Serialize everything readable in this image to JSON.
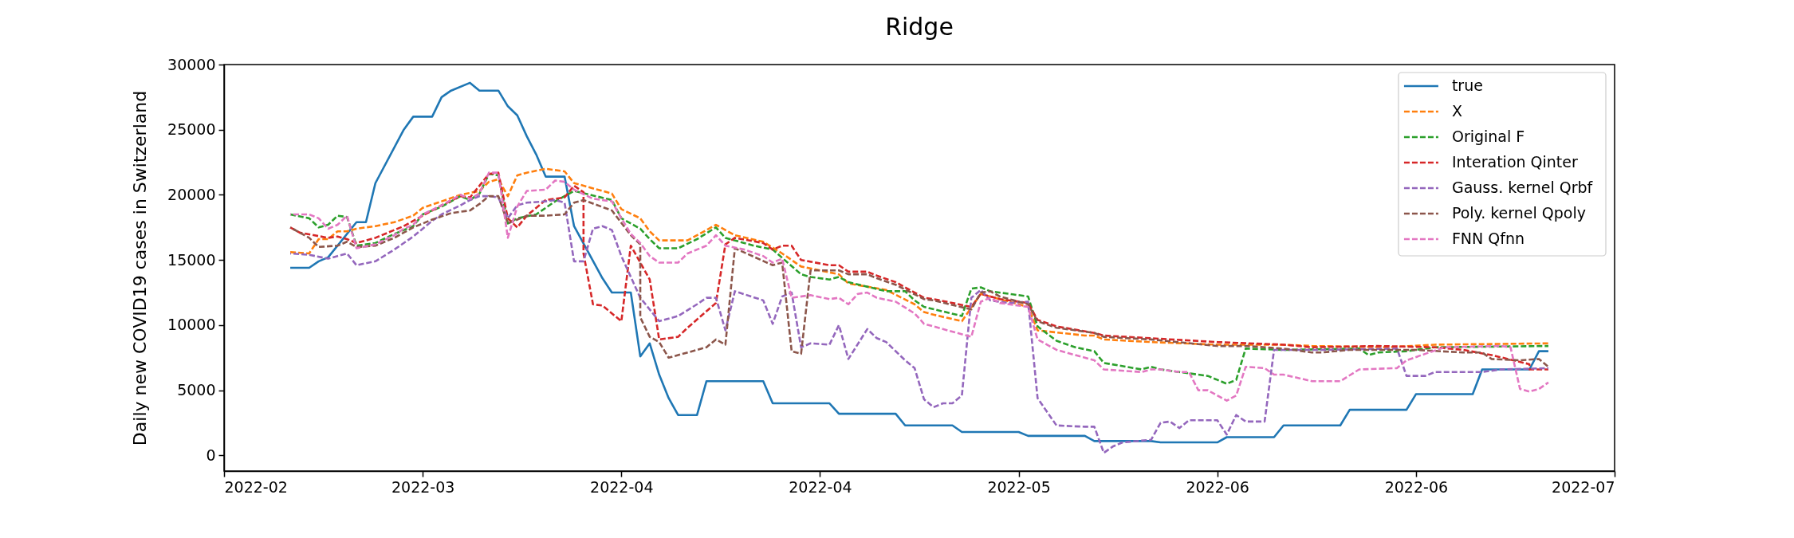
{
  "chart_data": {
    "type": "line",
    "title": "Ridge",
    "ylabel": "Daily new COVID19 cases in Switzerland",
    "xlim": [
      "2022-02-22",
      "2022-07-19"
    ],
    "ylim": [
      -1200,
      30000
    ],
    "xticks": [
      {
        "value": "2022-02-22",
        "label": "2022-02"
      },
      {
        "value": "2022-03-15",
        "label": "2022-03"
      },
      {
        "value": "2022-04-05",
        "label": "2022-04"
      },
      {
        "value": "2022-04-26",
        "label": "2022-04"
      },
      {
        "value": "2022-05-17",
        "label": "2022-05"
      },
      {
        "value": "2022-06-07",
        "label": "2022-06"
      },
      {
        "value": "2022-06-28",
        "label": "2022-06"
      },
      {
        "value": "2022-07-19",
        "label": "2022-07"
      }
    ],
    "yticks": [
      0,
      5000,
      10000,
      15000,
      20000,
      25000,
      30000
    ],
    "grid": false,
    "legend": "top right",
    "series": [
      {
        "name": "true",
        "color": "#1f77b4",
        "line_style": "solid",
        "x": [
          "2022-03-01",
          "2022-03-03",
          "2022-03-04",
          "2022-03-05",
          "2022-03-08",
          "2022-03-09",
          "2022-03-10",
          "2022-03-13",
          "2022-03-14",
          "2022-03-16",
          "2022-03-17",
          "2022-03-18",
          "2022-03-20",
          "2022-03-21",
          "2022-03-23",
          "2022-03-24",
          "2022-03-25",
          "2022-03-26",
          "2022-03-27",
          "2022-03-28",
          "2022-03-30",
          "2022-03-31",
          "2022-04-03",
          "2022-04-04",
          "2022-04-06",
          "2022-04-07",
          "2022-04-08",
          "2022-04-09",
          "2022-04-10",
          "2022-04-11",
          "2022-04-13",
          "2022-04-14",
          "2022-04-20",
          "2022-04-21",
          "2022-04-27",
          "2022-04-28",
          "2022-05-04",
          "2022-05-05",
          "2022-05-10",
          "2022-05-11",
          "2022-05-17",
          "2022-05-18",
          "2022-05-24",
          "2022-05-25",
          "2022-05-31",
          "2022-06-01",
          "2022-06-07",
          "2022-06-08",
          "2022-06-13",
          "2022-06-14",
          "2022-06-20",
          "2022-06-21",
          "2022-06-27",
          "2022-06-28",
          "2022-07-04",
          "2022-07-05",
          "2022-07-10",
          "2022-07-11",
          "2022-07-12"
        ],
        "values": [
          14400,
          14400,
          14900,
          15200,
          17900,
          17900,
          20900,
          25000,
          26000,
          26000,
          27500,
          28000,
          28600,
          28000,
          28000,
          26800,
          26100,
          24500,
          23100,
          21400,
          21400,
          17600,
          13600,
          12500,
          12500,
          7600,
          8600,
          6200,
          4400,
          3100,
          3100,
          5700,
          5700,
          4000,
          4000,
          3200,
          3200,
          2300,
          2300,
          1800,
          1800,
          1500,
          1500,
          1100,
          1100,
          1000,
          1000,
          1400,
          1400,
          2300,
          2300,
          3500,
          3500,
          4700,
          4700,
          6600,
          6600,
          8000,
          8000
        ]
      },
      {
        "name": "X",
        "color": "#ff7f0e",
        "line_style": "dashed",
        "x": [
          "2022-03-01",
          "2022-03-03",
          "2022-03-04",
          "2022-03-05",
          "2022-03-06",
          "2022-03-07",
          "2022-03-08",
          "2022-03-10",
          "2022-03-12",
          "2022-03-14",
          "2022-03-15",
          "2022-03-17",
          "2022-03-19",
          "2022-03-21",
          "2022-03-22",
          "2022-03-23",
          "2022-03-24",
          "2022-03-25",
          "2022-03-26",
          "2022-03-28",
          "2022-03-30",
          "2022-03-31",
          "2022-04-04",
          "2022-04-05",
          "2022-04-07",
          "2022-04-08",
          "2022-04-09",
          "2022-04-12",
          "2022-04-15",
          "2022-04-17",
          "2022-04-20",
          "2022-04-22",
          "2022-04-24",
          "2022-04-28",
          "2022-04-29",
          "2022-05-03",
          "2022-05-06",
          "2022-05-07",
          "2022-05-08",
          "2022-05-11",
          "2022-05-13",
          "2022-05-18",
          "2022-05-19",
          "2022-05-24",
          "2022-05-25",
          "2022-05-26",
          "2022-05-31",
          "2022-06-07",
          "2022-06-14",
          "2022-06-17",
          "2022-06-25",
          "2022-06-30",
          "2022-07-12"
        ],
        "values": [
          15600,
          15500,
          16600,
          16600,
          17200,
          17200,
          17400,
          17600,
          17900,
          18400,
          19000,
          19500,
          20000,
          20300,
          21000,
          21200,
          19900,
          21500,
          21700,
          22000,
          21800,
          20900,
          20100,
          18900,
          18200,
          17200,
          16500,
          16500,
          17700,
          16900,
          16400,
          15500,
          14500,
          13900,
          13200,
          12700,
          11600,
          11000,
          10800,
          10300,
          12400,
          11400,
          9600,
          9200,
          9200,
          8900,
          8700,
          8500,
          8500,
          8400,
          8300,
          8500,
          8600
        ]
      },
      {
        "name": "Original F",
        "color": "#2ca02c",
        "line_style": "dashed",
        "x": [
          "2022-03-01",
          "2022-03-03",
          "2022-03-04",
          "2022-03-05",
          "2022-03-06",
          "2022-03-07",
          "2022-03-08",
          "2022-03-10",
          "2022-03-12",
          "2022-03-14",
          "2022-03-15",
          "2022-03-17",
          "2022-03-19",
          "2022-03-20",
          "2022-03-21",
          "2022-03-22",
          "2022-03-23",
          "2022-03-24",
          "2022-03-25",
          "2022-03-27",
          "2022-03-29",
          "2022-03-31",
          "2022-04-04",
          "2022-04-05",
          "2022-04-07",
          "2022-04-08",
          "2022-04-09",
          "2022-04-11",
          "2022-04-13",
          "2022-04-15",
          "2022-04-16",
          "2022-04-19",
          "2022-04-21",
          "2022-04-24",
          "2022-04-25",
          "2022-04-27",
          "2022-04-28",
          "2022-04-29",
          "2022-05-03",
          "2022-05-05",
          "2022-05-06",
          "2022-05-07",
          "2022-05-11",
          "2022-05-12",
          "2022-05-13",
          "2022-05-14",
          "2022-05-18",
          "2022-05-19",
          "2022-05-21",
          "2022-05-23",
          "2022-05-25",
          "2022-05-26",
          "2022-05-30",
          "2022-05-31",
          "2022-06-01",
          "2022-06-03",
          "2022-06-06",
          "2022-06-08",
          "2022-06-09",
          "2022-06-10",
          "2022-06-14",
          "2022-06-22",
          "2022-06-23",
          "2022-06-24",
          "2022-06-27",
          "2022-06-30",
          "2022-07-12"
        ],
        "values": [
          18500,
          18200,
          17500,
          17700,
          18400,
          18300,
          16100,
          16300,
          17000,
          17600,
          18500,
          19100,
          19900,
          19600,
          20100,
          21600,
          21500,
          17800,
          18200,
          18500,
          19500,
          20300,
          19600,
          18200,
          17400,
          16600,
          15900,
          15900,
          16600,
          17500,
          16700,
          16100,
          15800,
          13900,
          13700,
          13500,
          13700,
          13300,
          12600,
          12600,
          11900,
          11400,
          10700,
          12800,
          12900,
          12600,
          12200,
          9900,
          8800,
          8300,
          8000,
          7100,
          6600,
          6800,
          6600,
          6400,
          6100,
          5500,
          5800,
          8200,
          8100,
          8200,
          7700,
          7900,
          8000,
          8300,
          8400
        ]
      },
      {
        "name": "Interation Qinter",
        "color": "#d62728",
        "line_style": "dashed",
        "x": [
          "2022-03-01",
          "2022-03-02",
          "2022-03-05",
          "2022-03-06",
          "2022-03-07",
          "2022-03-08",
          "2022-03-10",
          "2022-03-13",
          "2022-03-15",
          "2022-03-17",
          "2022-03-19",
          "2022-03-20",
          "2022-03-22",
          "2022-03-23",
          "2022-03-24",
          "2022-03-25",
          "2022-03-26",
          "2022-03-28",
          "2022-03-30",
          "2022-03-31",
          "2022-04-01",
          "2022-04-01",
          "2022-04-02",
          "2022-04-03",
          "2022-04-05",
          "2022-04-06",
          "2022-04-08",
          "2022-04-09",
          "2022-04-11",
          "2022-04-12",
          "2022-04-15",
          "2022-04-16",
          "2022-04-17",
          "2022-04-20",
          "2022-04-21",
          "2022-04-22",
          "2022-04-23",
          "2022-04-24",
          "2022-04-27",
          "2022-04-28",
          "2022-04-29",
          "2022-05-01",
          "2022-05-02",
          "2022-05-04",
          "2022-05-07",
          "2022-05-08",
          "2022-05-12",
          "2022-05-13",
          "2022-05-15",
          "2022-05-18",
          "2022-05-19",
          "2022-05-21",
          "2022-05-25",
          "2022-05-26",
          "2022-06-07",
          "2022-06-14",
          "2022-06-17",
          "2022-06-24",
          "2022-06-30",
          "2022-07-03",
          "2022-07-06",
          "2022-07-10",
          "2022-07-10",
          "2022-07-12"
        ],
        "values": [
          17500,
          17100,
          16700,
          16800,
          16600,
          16300,
          16700,
          17600,
          18400,
          19200,
          19900,
          19800,
          21600,
          21700,
          18200,
          17500,
          18400,
          19600,
          19800,
          20700,
          20200,
          15500,
          11600,
          11500,
          10300,
          16100,
          13500,
          8900,
          9100,
          9800,
          11700,
          16200,
          16700,
          16300,
          15800,
          16100,
          16100,
          15000,
          14600,
          14600,
          14100,
          14100,
          13800,
          13300,
          12100,
          12000,
          11400,
          12400,
          12000,
          11700,
          10400,
          9900,
          9400,
          9200,
          8700,
          8500,
          8300,
          8400,
          8300,
          8100,
          7700,
          7000,
          6600,
          6600
        ]
      },
      {
        "name": "Gauss. kernel Qrbf",
        "color": "#9467bd",
        "line_style": "dashed",
        "x": [
          "2022-03-01",
          "2022-03-03",
          "2022-03-05",
          "2022-03-06",
          "2022-03-07",
          "2022-03-08",
          "2022-03-10",
          "2022-03-12",
          "2022-03-14",
          "2022-03-16",
          "2022-03-17",
          "2022-03-19",
          "2022-03-20",
          "2022-03-21",
          "2022-03-22",
          "2022-03-23",
          "2022-03-24",
          "2022-03-25",
          "2022-03-26",
          "2022-03-28",
          "2022-03-29",
          "2022-03-30",
          "2022-03-31",
          "2022-04-01",
          "2022-04-02",
          "2022-04-03",
          "2022-04-04",
          "2022-04-05",
          "2022-04-07",
          "2022-04-09",
          "2022-04-11",
          "2022-04-13",
          "2022-04-14",
          "2022-04-15",
          "2022-04-16",
          "2022-04-17",
          "2022-04-20",
          "2022-04-21",
          "2022-04-22",
          "2022-04-23",
          "2022-04-24",
          "2022-04-25",
          "2022-04-27",
          "2022-04-28",
          "2022-04-29",
          "2022-05-01",
          "2022-05-02",
          "2022-05-03",
          "2022-05-05",
          "2022-05-06",
          "2022-05-07",
          "2022-05-08",
          "2022-05-09",
          "2022-05-10",
          "2022-05-11",
          "2022-05-12",
          "2022-05-13",
          "2022-05-14",
          "2022-05-16",
          "2022-05-18",
          "2022-05-19",
          "2022-05-21",
          "2022-05-24",
          "2022-05-25",
          "2022-05-26",
          "2022-05-27",
          "2022-05-28",
          "2022-05-31",
          "2022-06-01",
          "2022-06-02",
          "2022-06-03",
          "2022-06-04",
          "2022-06-07",
          "2022-06-08",
          "2022-06-09",
          "2022-06-10",
          "2022-06-12",
          "2022-06-13",
          "2022-06-18",
          "2022-06-26",
          "2022-06-27",
          "2022-06-29",
          "2022-06-30",
          "2022-07-05",
          "2022-07-07",
          "2022-07-12"
        ],
        "values": [
          15500,
          15400,
          15100,
          15300,
          15500,
          14600,
          14900,
          15800,
          16800,
          18000,
          18500,
          19200,
          19600,
          19900,
          19900,
          19800,
          18200,
          19200,
          19400,
          19500,
          19600,
          19400,
          14900,
          14900,
          17400,
          17600,
          17300,
          15300,
          12100,
          10300,
          10700,
          11600,
          12100,
          12100,
          9600,
          12600,
          11900,
          10100,
          12200,
          12500,
          8300,
          8600,
          8500,
          10000,
          7400,
          9700,
          9000,
          8700,
          7300,
          6700,
          4300,
          3700,
          4000,
          4000,
          4600,
          12100,
          12700,
          11900,
          11700,
          11800,
          4400,
          2300,
          2200,
          2200,
          200,
          700,
          1000,
          1200,
          2500,
          2600,
          2100,
          2700,
          2700,
          1600,
          3100,
          2600,
          2600,
          8100,
          8100,
          8200,
          6100,
          6100,
          6400,
          6400,
          6600,
          6700
        ]
      },
      {
        "name": "Poly. kernel Qpoly",
        "color": "#8c564b",
        "line_style": "dashed",
        "x": [
          "2022-03-01",
          "2022-03-03",
          "2022-03-04",
          "2022-03-06",
          "2022-03-07",
          "2022-03-08",
          "2022-03-10",
          "2022-03-12",
          "2022-03-14",
          "2022-03-16",
          "2022-03-18",
          "2022-03-20",
          "2022-03-21",
          "2022-03-22",
          "2022-03-23",
          "2022-03-24",
          "2022-03-25",
          "2022-03-26",
          "2022-03-28",
          "2022-03-30",
          "2022-03-31",
          "2022-04-01",
          "2022-04-04",
          "2022-04-06",
          "2022-04-07",
          "2022-04-07",
          "2022-04-08",
          "2022-04-09",
          "2022-04-10",
          "2022-04-14",
          "2022-04-15",
          "2022-04-16",
          "2022-04-17",
          "2022-04-21",
          "2022-04-22",
          "2022-04-23",
          "2022-04-24",
          "2022-04-25",
          "2022-04-27",
          "2022-04-28",
          "2022-04-29",
          "2022-05-01",
          "2022-05-02",
          "2022-05-04",
          "2022-05-07",
          "2022-05-08",
          "2022-05-12",
          "2022-05-13",
          "2022-05-14",
          "2022-05-15",
          "2022-05-18",
          "2022-05-19",
          "2022-05-21",
          "2022-05-25",
          "2022-05-26",
          "2022-05-31",
          "2022-06-07",
          "2022-06-10",
          "2022-06-14",
          "2022-06-17",
          "2022-06-18",
          "2022-06-21",
          "2022-06-28",
          "2022-07-03",
          "2022-07-05",
          "2022-07-06",
          "2022-07-09",
          "2022-07-11",
          "2022-07-12"
        ],
        "values": [
          17500,
          16700,
          16000,
          16100,
          16400,
          16000,
          16100,
          16700,
          17500,
          18100,
          18600,
          18800,
          19300,
          19900,
          19900,
          17800,
          18100,
          18400,
          18400,
          18500,
          19400,
          19600,
          18800,
          16900,
          16200,
          10600,
          9100,
          8700,
          7500,
          8300,
          8900,
          8500,
          15900,
          14600,
          14800,
          8000,
          7800,
          14200,
          14200,
          14200,
          13900,
          13900,
          13600,
          13100,
          12000,
          11900,
          11200,
          12500,
          12600,
          12200,
          11600,
          10300,
          9800,
          9400,
          9100,
          8900,
          8400,
          8400,
          8200,
          7900,
          7900,
          8100,
          8100,
          7900,
          7900,
          7400,
          7300,
          7400,
          6800
        ]
      },
      {
        "name": "FNN Qfnn",
        "color": "#e377c2",
        "line_style": "dashed",
        "x": [
          "2022-03-01",
          "2022-03-03",
          "2022-03-04",
          "2022-03-05",
          "2022-03-06",
          "2022-03-07",
          "2022-03-08",
          "2022-03-10",
          "2022-03-12",
          "2022-03-13",
          "2022-03-14",
          "2022-03-15",
          "2022-03-17",
          "2022-03-19",
          "2022-03-20",
          "2022-03-21",
          "2022-03-22",
          "2022-03-23",
          "2022-03-24",
          "2022-03-25",
          "2022-03-26",
          "2022-03-28",
          "2022-03-29",
          "2022-03-30",
          "2022-03-31",
          "2022-04-02",
          "2022-04-04",
          "2022-04-05",
          "2022-04-06",
          "2022-04-07",
          "2022-04-08",
          "2022-04-09",
          "2022-04-11",
          "2022-04-12",
          "2022-04-14",
          "2022-04-15",
          "2022-04-16",
          "2022-04-18",
          "2022-04-20",
          "2022-04-21",
          "2022-04-22",
          "2022-04-23",
          "2022-04-25",
          "2022-04-27",
          "2022-04-28",
          "2022-04-29",
          "2022-04-30",
          "2022-05-01",
          "2022-05-02",
          "2022-05-04",
          "2022-05-06",
          "2022-05-07",
          "2022-05-08",
          "2022-05-12",
          "2022-05-13",
          "2022-05-14",
          "2022-05-15",
          "2022-05-18",
          "2022-05-19",
          "2022-05-21",
          "2022-05-23",
          "2022-05-25",
          "2022-05-26",
          "2022-05-30",
          "2022-05-31",
          "2022-06-01",
          "2022-06-03",
          "2022-06-04",
          "2022-06-05",
          "2022-06-06",
          "2022-06-08",
          "2022-06-09",
          "2022-06-10",
          "2022-06-12",
          "2022-06-13",
          "2022-06-14",
          "2022-06-17",
          "2022-06-20",
          "2022-06-22",
          "2022-06-26",
          "2022-06-27",
          "2022-06-29",
          "2022-07-01",
          "2022-07-07",
          "2022-07-08",
          "2022-07-09",
          "2022-07-10",
          "2022-07-11",
          "2022-07-12"
        ],
        "values": [
          18500,
          18500,
          18200,
          17400,
          17700,
          18400,
          15900,
          16200,
          16900,
          17400,
          17700,
          18500,
          19200,
          20000,
          19700,
          20100,
          21700,
          21700,
          16700,
          19100,
          20300,
          20400,
          21100,
          21000,
          20400,
          19700,
          19500,
          18200,
          17000,
          16300,
          15300,
          14800,
          14800,
          15500,
          16100,
          16900,
          16100,
          15800,
          15300,
          14800,
          15100,
          12100,
          12300,
          12000,
          12100,
          11600,
          12400,
          12500,
          12100,
          11800,
          10900,
          10100,
          9900,
          9100,
          11800,
          12100,
          11700,
          11400,
          8900,
          8100,
          7700,
          7300,
          6600,
          6400,
          6600,
          6600,
          6400,
          6400,
          5000,
          5000,
          4200,
          4600,
          6800,
          6700,
          6200,
          6200,
          5700,
          5700,
          6600,
          6700,
          7300,
          7800,
          8300,
          8400,
          8300,
          5100,
          4900,
          5100,
          5600
        ]
      }
    ]
  }
}
